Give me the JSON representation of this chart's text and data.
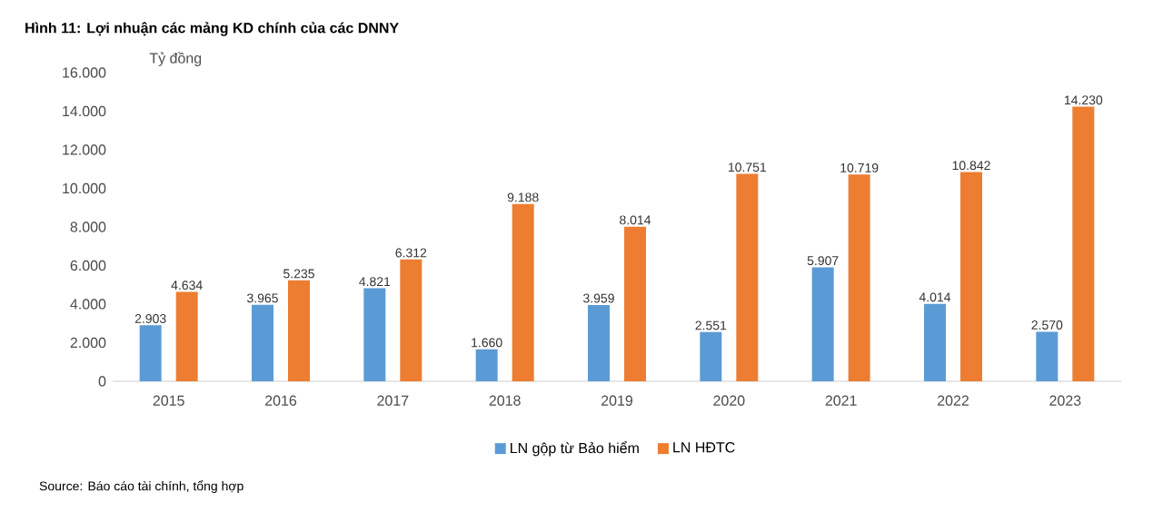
{
  "chart_data": {
    "type": "bar",
    "title": "Hình 11: Lợi nhuận các mảng KD chính của các DNNY",
    "ylabel": "Tỷ đồng",
    "annotations": [
      "Source: Báo cáo tài chính, tổng hợp"
    ],
    "categories": [
      "2015",
      "2016",
      "2017",
      "2018",
      "2019",
      "2020",
      "2021",
      "2022",
      "2023"
    ],
    "series": [
      {
        "name": "LN gộp từ Bảo hiểm",
        "color": "#5b9bd5",
        "values": [
          2903,
          3965,
          4821,
          1660,
          3959,
          2551,
          5907,
          4014,
          2570
        ],
        "value_labels": [
          "2.903",
          "3.965",
          "4.821",
          "1.660",
          "3.959",
          "2.551",
          "5.907",
          "4.014",
          "2.570"
        ]
      },
      {
        "name": "LN HĐTC",
        "color": "#ed7d31",
        "values": [
          4634,
          5235,
          6312,
          9188,
          8014,
          10751,
          10719,
          10842,
          14230
        ],
        "value_labels": [
          "4.634",
          "5.235",
          "6.312",
          "9.188",
          "8.014",
          "10.751",
          "10.719",
          "10.842",
          "14.230"
        ]
      }
    ],
    "ylim": [
      0,
      16000
    ],
    "yticks": [
      {
        "value": 0,
        "label": "0"
      },
      {
        "value": 2000,
        "label": "2.000"
      },
      {
        "value": 4000,
        "label": "4.000"
      },
      {
        "value": 6000,
        "label": "6.000"
      },
      {
        "value": 8000,
        "label": "8.000"
      },
      {
        "value": 10000,
        "label": "10.000"
      },
      {
        "value": 12000,
        "label": "12.000"
      },
      {
        "value": 14000,
        "label": "14.000"
      },
      {
        "value": 16000,
        "label": "16.000"
      }
    ],
    "legend": "bottom"
  }
}
